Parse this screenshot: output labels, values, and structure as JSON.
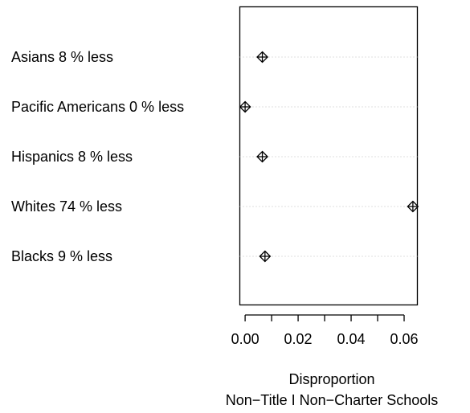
{
  "chart_data": {
    "type": "scatter",
    "subtype": "dotchart",
    "categories": [
      "Asians  8 % less",
      "Pacific Americans  0 % less",
      "Hispanics  8 % less",
      "Whites  74 % less",
      "Blacks  9 % less"
    ],
    "values": [
      0.0065,
      0.0,
      0.0065,
      0.0633,
      0.0075
    ],
    "xlim": [
      -0.002,
      0.065
    ],
    "xticks": [
      0.0,
      0.01,
      0.02,
      0.03,
      0.04,
      0.05,
      0.06
    ],
    "xtick_labels": [
      {
        "value": 0.0,
        "label": "0.00"
      },
      {
        "value": 0.02,
        "label": "0.02"
      },
      {
        "value": 0.04,
        "label": "0.04"
      },
      {
        "value": 0.06,
        "label": "0.06"
      }
    ],
    "xlabel": "Disproportion",
    "xlabel2": "Non−Title I Non−Charter Schools",
    "marker": "diamond-plus",
    "grid": "dotted per row",
    "colors": {
      "foreground": "#000000",
      "grid": "#bebebe",
      "background": "#ffffff"
    }
  }
}
